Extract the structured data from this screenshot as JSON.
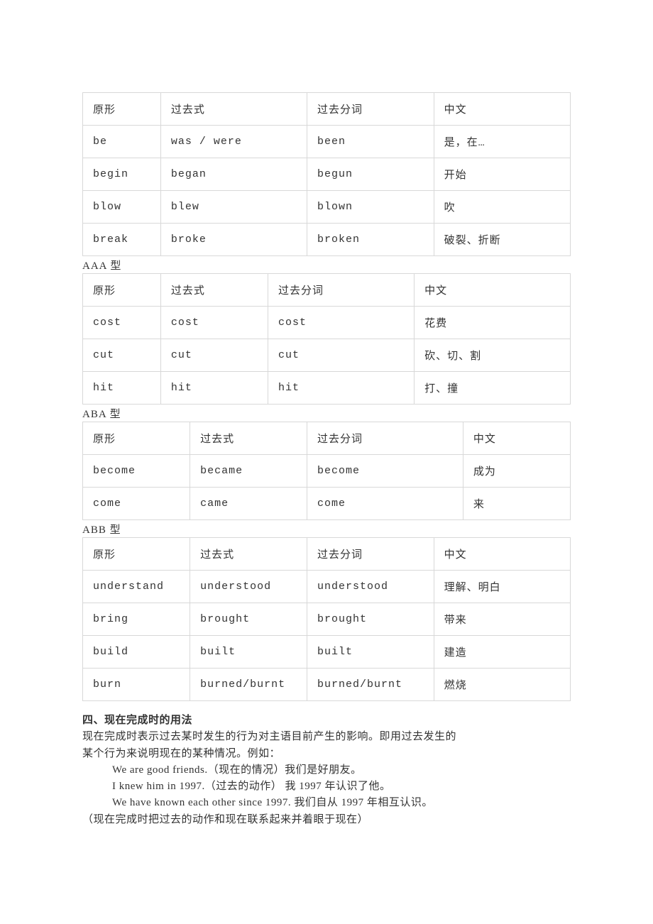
{
  "colors": {
    "text": "#333333",
    "border": "#d8d8d8",
    "background": "#ffffff"
  },
  "typography": {
    "body_fontsize": 15,
    "font_family": "SimSun"
  },
  "table1": {
    "col_widths": [
      "16%",
      "30%",
      "26%",
      "28%"
    ],
    "header": [
      "原形",
      "过去式",
      "过去分词",
      "中文"
    ],
    "rows": [
      [
        "be",
        "was / were",
        "been",
        "是，在…"
      ],
      [
        "begin",
        "began",
        "begun",
        "开始"
      ],
      [
        "blow",
        "blew",
        "blown",
        "吹"
      ],
      [
        "break",
        "broke",
        "broken",
        "破裂、折断"
      ]
    ]
  },
  "label_aaa": "AAA 型",
  "table2": {
    "col_widths": [
      "16%",
      "22%",
      "30%",
      "32%"
    ],
    "header": [
      "原形",
      "过去式",
      "过去分词",
      "中文"
    ],
    "rows": [
      [
        "cost",
        "cost",
        "cost",
        "花费"
      ],
      [
        "cut",
        "cut",
        "cut",
        "砍、切、割"
      ],
      [
        "hit",
        "hit",
        "hit",
        "打、撞"
      ]
    ]
  },
  "label_aba": "ABA 型",
  "table3": {
    "col_widths": [
      "22%",
      "24%",
      "32%",
      "22%"
    ],
    "header": [
      "原形",
      "过去式",
      "过去分词",
      "中文"
    ],
    "rows": [
      [
        "become",
        "became",
        "become",
        "成为"
      ],
      [
        "come",
        "came",
        "come",
        "来"
      ]
    ]
  },
  "label_abb": "ABB 型",
  "table4": {
    "col_widths": [
      "22%",
      "24%",
      "26%",
      "28%"
    ],
    "header": [
      "原形",
      "过去式",
      "过去分词",
      "中文"
    ],
    "rows": [
      [
        "understand",
        "understood",
        "understood",
        "理解、明白"
      ],
      [
        "bring",
        "brought",
        "brought",
        "带来"
      ],
      [
        "build",
        "built",
        "built",
        "建造"
      ],
      [
        "burn",
        "burned/burnt",
        "burned/burnt",
        "燃烧"
      ]
    ]
  },
  "section4": {
    "heading": "四、现在完成时的用法",
    "para1a": "现在完成时表示过去某时发生的行为对主语目前产生的影响。即用过去发生的",
    "para1b": "某个行为来说明现在的某种情况。例如：",
    "ex1": "We are good friends.（现在的情况）我们是好朋友。",
    "ex2": "I knew him in 1997.（过去的动作） 我 1997 年认识了他。",
    "ex3": "We have known each other since 1997. 我们自从 1997 年相互认识。",
    "para2": "（现在完成时把过去的动作和现在联系起来并着眼于现在）"
  }
}
